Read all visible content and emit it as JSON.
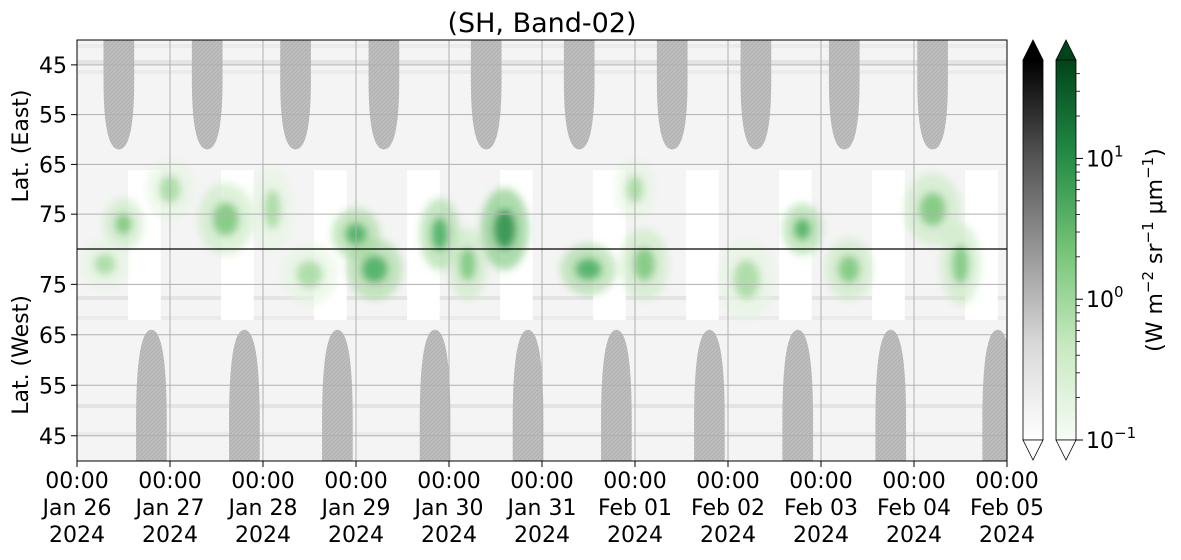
{
  "chart_data": {
    "type": "heatmap",
    "title": "(SH, Band-02)",
    "xlabel": "",
    "x_ticks": [
      {
        "time": "00:00",
        "date": "Jan 26",
        "year": "2024"
      },
      {
        "time": "00:00",
        "date": "Jan 27",
        "year": "2024"
      },
      {
        "time": "00:00",
        "date": "Jan 28",
        "year": "2024"
      },
      {
        "time": "00:00",
        "date": "Jan 29",
        "year": "2024"
      },
      {
        "time": "00:00",
        "date": "Jan 30",
        "year": "2024"
      },
      {
        "time": "00:00",
        "date": "Jan 31",
        "year": "2024"
      },
      {
        "time": "00:00",
        "date": "Feb 01",
        "year": "2024"
      },
      {
        "time": "00:00",
        "date": "Feb 02",
        "year": "2024"
      },
      {
        "time": "00:00",
        "date": "Feb 03",
        "year": "2024"
      },
      {
        "time": "00:00",
        "date": "Feb 04",
        "year": "2024"
      },
      {
        "time": "00:00",
        "date": "Feb 05",
        "year": "2024"
      }
    ],
    "x_range": [
      "2024-01-26 00:00",
      "2024-02-05 00:00"
    ],
    "panels": [
      {
        "ylabel": "Lat. (East)",
        "yticks": [
          "45",
          "55",
          "65",
          "75"
        ],
        "ylim": [
          40,
          82
        ]
      },
      {
        "ylabel": "Lat. (West)",
        "yticks": [
          "75",
          "65",
          "55",
          "45"
        ],
        "ylim": [
          82,
          40
        ]
      }
    ],
    "grid": true,
    "colorbars": [
      {
        "name": "grey",
        "scale": "log",
        "range": [
          0.1,
          50
        ],
        "extend": "both",
        "colors": [
          "#ffffff",
          "#d9d9d9",
          "#969696",
          "#525252",
          "#000000"
        ]
      },
      {
        "name": "green",
        "scale": "log",
        "range": [
          0.1,
          50
        ],
        "extend": "both",
        "colors": [
          "#f7fcf5",
          "#c7e9c0",
          "#74c476",
          "#238b45",
          "#00441b"
        ],
        "ticks": [
          {
            "base": "10",
            "exp": "1",
            "value": 10
          },
          {
            "base": "10",
            "exp": "0",
            "value": 1
          },
          {
            "base": "10",
            "exp": "−1",
            "value": 0.1
          }
        ]
      }
    ],
    "colorbar_label": {
      "prefix": "(W m",
      "e1": "−2",
      "mid1": " sr",
      "e2": "−1",
      "mid2": " μm",
      "e3": "−1",
      "suffix": ")"
    },
    "night_gaps_east_day_index": [
      0.45,
      1.4,
      2.35,
      3.3,
      4.4,
      5.4,
      6.4,
      7.3,
      8.25,
      9.2
    ],
    "night_gaps_west_day_index": [
      0.8,
      1.8,
      2.8,
      3.85,
      4.85,
      5.8,
      6.8,
      7.75,
      8.75,
      9.9
    ],
    "green_patches": [
      {
        "day": 0.5,
        "lat": 77,
        "panel": "east",
        "level": 3
      },
      {
        "day": 1.0,
        "lat": 70,
        "panel": "east",
        "level": 2
      },
      {
        "day": 1.6,
        "lat": 76,
        "panel": "east",
        "level": 3
      },
      {
        "day": 2.1,
        "lat": 74,
        "panel": "east",
        "level": 2
      },
      {
        "day": 3.0,
        "lat": 79,
        "panel": "east",
        "level": 4
      },
      {
        "day": 3.2,
        "lat": 78,
        "panel": "west",
        "level": 4
      },
      {
        "day": 3.9,
        "lat": 79,
        "panel": "east",
        "level": 4
      },
      {
        "day": 4.6,
        "lat": 78,
        "panel": "east",
        "level": 5
      },
      {
        "day": 5.5,
        "lat": 78,
        "panel": "west",
        "level": 4
      },
      {
        "day": 6.0,
        "lat": 70,
        "panel": "east",
        "level": 2
      },
      {
        "day": 6.1,
        "lat": 79,
        "panel": "west",
        "level": 3
      },
      {
        "day": 7.2,
        "lat": 76,
        "panel": "west",
        "level": 2
      },
      {
        "day": 7.8,
        "lat": 78,
        "panel": "east",
        "level": 4
      },
      {
        "day": 8.3,
        "lat": 78,
        "panel": "west",
        "level": 3
      },
      {
        "day": 9.2,
        "lat": 74,
        "panel": "east",
        "level": 3
      },
      {
        "day": 9.5,
        "lat": 79,
        "panel": "west",
        "level": 3
      },
      {
        "day": 0.3,
        "lat": 79,
        "panel": "west",
        "level": 2
      },
      {
        "day": 2.5,
        "lat": 77,
        "panel": "west",
        "level": 2
      },
      {
        "day": 4.2,
        "lat": 79,
        "panel": "west",
        "level": 3
      }
    ]
  }
}
